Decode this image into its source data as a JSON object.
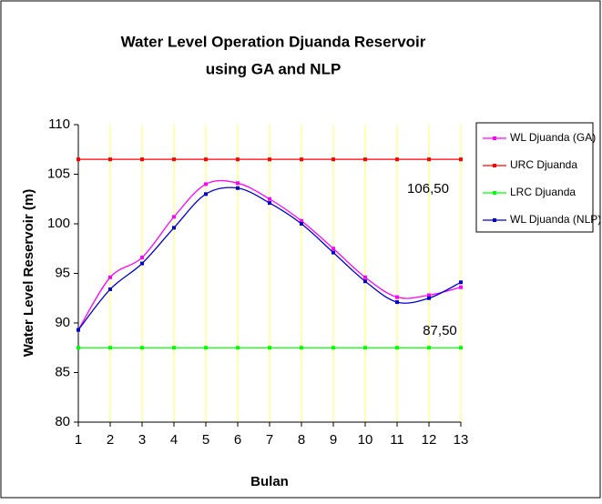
{
  "chart_data": {
    "type": "line",
    "title": "Water Level Operation Djuanda Reservoir",
    "subtitle": "using GA and NLP",
    "x_label": "Bulan",
    "y_label": "Water Level Reservoir (m)",
    "x": [
      1,
      2,
      3,
      4,
      5,
      6,
      7,
      8,
      9,
      10,
      11,
      12,
      13
    ],
    "series": [
      {
        "name": "WL Djuanda (GA)",
        "color": "#ff00ff",
        "values": [
          89.3,
          94.6,
          96.6,
          100.7,
          104.0,
          104.1,
          102.5,
          100.3,
          97.5,
          94.6,
          92.6,
          92.8,
          93.6
        ]
      },
      {
        "name": "URC Djuanda",
        "color": "#ff0000",
        "values": [
          106.5,
          106.5,
          106.5,
          106.5,
          106.5,
          106.5,
          106.5,
          106.5,
          106.5,
          106.5,
          106.5,
          106.5,
          106.5
        ]
      },
      {
        "name": "LRC Djuanda",
        "color": "#00ff00",
        "values": [
          87.5,
          87.5,
          87.5,
          87.5,
          87.5,
          87.5,
          87.5,
          87.5,
          87.5,
          87.5,
          87.5,
          87.5,
          87.5
        ]
      },
      {
        "name": "WL Djuanda (NLP)",
        "color": "#0000cc",
        "values": [
          89.3,
          93.4,
          96.0,
          99.6,
          103.0,
          103.6,
          102.1,
          100.0,
          97.1,
          94.2,
          92.1,
          92.5,
          94.1
        ]
      }
    ],
    "annotations": [
      "106,50",
      "87,50"
    ],
    "xlim": [
      1,
      13
    ],
    "xticks": [
      1,
      2,
      3,
      4,
      5,
      6,
      7,
      8,
      9,
      10,
      11,
      12,
      13
    ],
    "ylim": [
      80,
      110
    ],
    "yticks": [
      80,
      85,
      90,
      95,
      100,
      105,
      110
    ],
    "grid": true,
    "grid_color": "#ffff66",
    "legend": "right"
  }
}
